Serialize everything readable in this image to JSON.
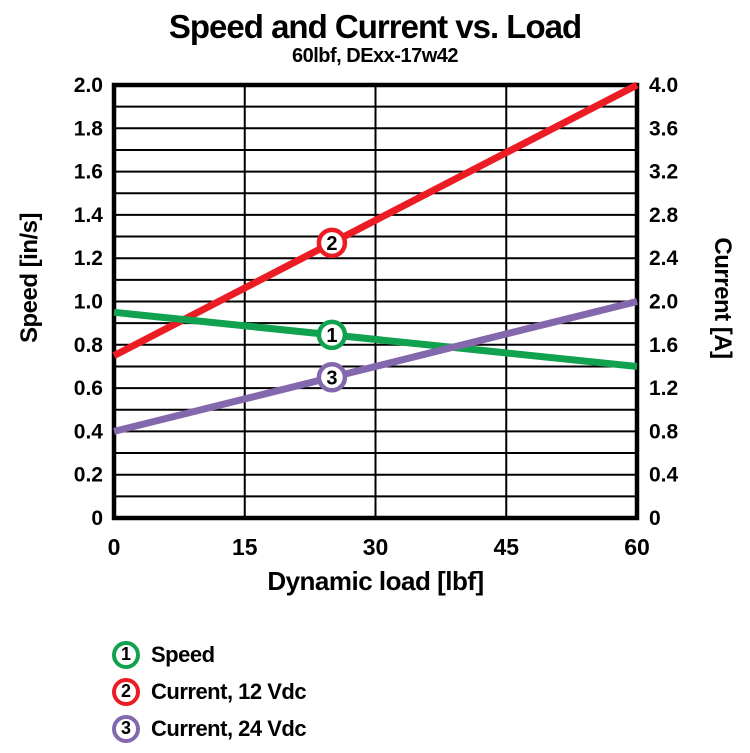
{
  "chart": {
    "title": "Speed and Current vs. Load",
    "subtitle": "60lbf, DExx-17w42",
    "x_axis": {
      "label": "Dynamic load [lbf]",
      "min": 0,
      "max": 60,
      "tick_values": [
        0,
        15,
        30,
        45,
        60
      ],
      "tick_labels": [
        "0",
        "15",
        "30",
        "45",
        "60"
      ]
    },
    "y_left": {
      "label": "Speed [in/s]",
      "min": 0,
      "max": 2.0,
      "tick_labels": [
        "2.0",
        "1.8",
        "1.6",
        "1.4",
        "1.2",
        "1.0",
        "0.8",
        "0.6",
        "0.4",
        "0.2",
        "0"
      ],
      "grid_divisions": 20
    },
    "y_right": {
      "label": "Current [A]",
      "min": 0,
      "max": 4.0,
      "tick_labels": [
        "4.0",
        "3.6",
        "3.2",
        "2.8",
        "2.4",
        "2.0",
        "1.6",
        "1.2",
        "0.8",
        "0.4",
        "0"
      ]
    }
  },
  "chart_data": {
    "type": "line",
    "title": "Speed and Current vs. Load",
    "subtitle": "60lbf, DExx-17w42",
    "xlabel": "Dynamic load [lbf]",
    "ylabel_left": "Speed [in/s]",
    "ylabel_right": "Current [A]",
    "xlim": [
      0,
      60
    ],
    "ylim_left": [
      0,
      2.0
    ],
    "ylim_right": [
      0,
      4.0
    ],
    "grid": true,
    "legend_position": "below",
    "x": [
      0,
      60
    ],
    "series": [
      {
        "name": "Speed",
        "marker_number": "1",
        "axis": "left",
        "unit": "in/s",
        "color": "#10a24e",
        "values": [
          0.95,
          0.7
        ],
        "marker_at_x": 25
      },
      {
        "name": "Current, 12 Vdc",
        "marker_number": "2",
        "axis": "right",
        "unit": "A",
        "color": "#ec1c24",
        "values": [
          1.5,
          4.0
        ],
        "marker_at_x": 25
      },
      {
        "name": "Current, 24 Vdc",
        "marker_number": "3",
        "axis": "right",
        "unit": "A",
        "color": "#8368ad",
        "values": [
          0.8,
          2.0
        ],
        "marker_at_x": 25
      }
    ]
  },
  "legend": {
    "items": [
      {
        "number": "1",
        "label": "Speed",
        "color": "#10a24e"
      },
      {
        "number": "2",
        "label": "Current, 12 Vdc",
        "color": "#ec1c24"
      },
      {
        "number": "3",
        "label": "Current, 24 Vdc",
        "color": "#8368ad"
      }
    ]
  },
  "colors": {
    "background": "#ffffff",
    "grid": "#000000",
    "frame": "#000000",
    "text": "#000000",
    "speed_line": "#10a24e",
    "current_12vdc_line": "#ec1c24",
    "current_24vdc_line": "#8368ad"
  }
}
